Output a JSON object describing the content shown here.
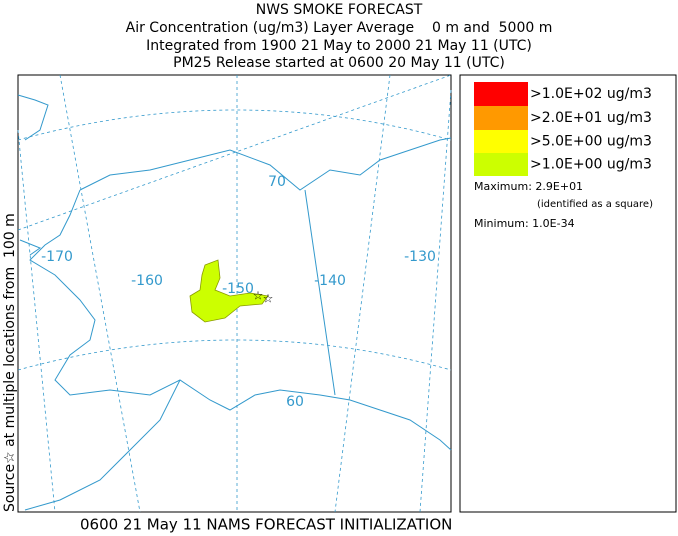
{
  "header": {
    "title": "NWS SMOKE FORECAST",
    "lines": [
      "Air Concentration (ug/m3) Layer Average    0 m and  5000 m",
      "Integrated from 1900 21 May to 2000 21 May 11 (UTC)",
      "PM25 Release started at 0600 20 May 11 (UTC)"
    ]
  },
  "side_label": "Source☆ at multiple locations from  100 m",
  "map": {
    "labels": [
      "-170",
      "-160",
      "-150",
      "-140",
      "-130",
      "70",
      "60"
    ]
  },
  "legend": {
    "items": [
      {
        "label": ">1.0E+02 ug/m3",
        "color": "#ff0000"
      },
      {
        "label": ">2.0E+01 ug/m3",
        "color": "#ff9900"
      },
      {
        "label": ">5.0E+00 ug/m3",
        "color": "#ffff00"
      },
      {
        "label": ">1.0E+00 ug/m3",
        "color": "#ccff00"
      }
    ],
    "maximum": "Maximum: 2.9E+01",
    "max_note": "(identified as a square)",
    "minimum": "Minimum: 1.0E-34"
  },
  "footer": "0600 21 May 11 NAMS FORECAST INITIALIZATION"
}
